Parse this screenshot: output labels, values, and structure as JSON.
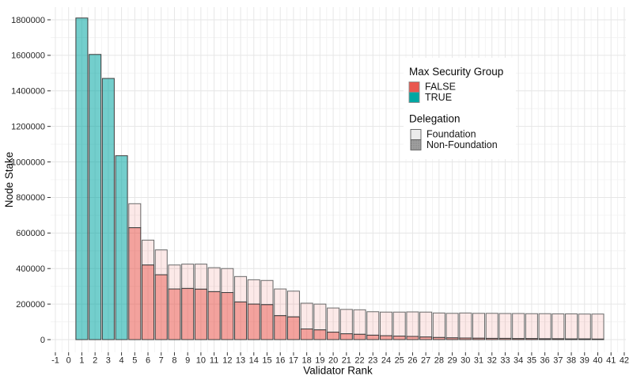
{
  "figure": {
    "xlabel": "Validator Rank",
    "ylabel": "Node Stake"
  },
  "legend": {
    "group_title": "Max Security Group",
    "group_items": [
      {
        "label": "FALSE",
        "color": "#E9564E"
      },
      {
        "label": "TRUE",
        "color": "#00A7A3"
      }
    ],
    "delegation_title": "Delegation",
    "delegation_items": [
      {
        "label": "Foundation",
        "color": "#EBEBEB"
      },
      {
        "label": "Non-Foundation",
        "color": "#9E9E9E"
      }
    ]
  },
  "colors": {
    "bar_red_rgb": "233,85,77",
    "bar_teal_rgb": "0,166,162",
    "alpha_non_foundation": 0.55,
    "alpha_foundation": 0.13,
    "grid_major": "#E6E6E6",
    "grid_minor": "#F4F4F4",
    "tick_text": "#262626",
    "title_text": "#0A0A0A",
    "bar_stroke_solid": "#3D3D3D",
    "bar_stroke_light": "#6A6A6A"
  },
  "chart_data": {
    "type": "bar",
    "stacked": true,
    "title": "",
    "xlabel": "Validator Rank",
    "ylabel": "Node Stake",
    "fill_legend": "Max Security Group",
    "alpha_legend": "Delegation",
    "x_range": [
      -1,
      42
    ],
    "ylim": [
      0,
      1871000
    ],
    "grid": true,
    "legend_position": "inside-top-right",
    "x_ticks": [
      -1,
      0,
      1,
      2,
      3,
      4,
      5,
      6,
      7,
      8,
      9,
      10,
      11,
      12,
      13,
      14,
      15,
      16,
      17,
      18,
      19,
      20,
      21,
      22,
      23,
      24,
      25,
      26,
      27,
      28,
      29,
      30,
      31,
      32,
      33,
      34,
      35,
      36,
      37,
      38,
      39,
      40,
      41,
      42
    ],
    "y_ticks": [
      0,
      200000,
      400000,
      600000,
      800000,
      1000000,
      1200000,
      1400000,
      1600000,
      1800000
    ],
    "bars": [
      {
        "rank": 1,
        "max_security_group": "TRUE",
        "non_foundation": 1810000,
        "foundation": 0
      },
      {
        "rank": 2,
        "max_security_group": "TRUE",
        "non_foundation": 1605000,
        "foundation": 0
      },
      {
        "rank": 3,
        "max_security_group": "TRUE",
        "non_foundation": 1470000,
        "foundation": 0
      },
      {
        "rank": 4,
        "max_security_group": "TRUE",
        "non_foundation": 1035000,
        "foundation": 0
      },
      {
        "rank": 5,
        "max_security_group": "FALSE",
        "non_foundation": 630000,
        "foundation": 135000
      },
      {
        "rank": 6,
        "max_security_group": "FALSE",
        "non_foundation": 420000,
        "foundation": 140000
      },
      {
        "rank": 7,
        "max_security_group": "FALSE",
        "non_foundation": 365000,
        "foundation": 140000
      },
      {
        "rank": 8,
        "max_security_group": "FALSE",
        "non_foundation": 285000,
        "foundation": 135000
      },
      {
        "rank": 9,
        "max_security_group": "FALSE",
        "non_foundation": 288000,
        "foundation": 137000
      },
      {
        "rank": 10,
        "max_security_group": "FALSE",
        "non_foundation": 284000,
        "foundation": 141000
      },
      {
        "rank": 11,
        "max_security_group": "FALSE",
        "non_foundation": 270000,
        "foundation": 135000
      },
      {
        "rank": 12,
        "max_security_group": "FALSE",
        "non_foundation": 265000,
        "foundation": 135000
      },
      {
        "rank": 13,
        "max_security_group": "FALSE",
        "non_foundation": 212000,
        "foundation": 143000
      },
      {
        "rank": 14,
        "max_security_group": "FALSE",
        "non_foundation": 200000,
        "foundation": 137000
      },
      {
        "rank": 15,
        "max_security_group": "FALSE",
        "non_foundation": 197000,
        "foundation": 136000
      },
      {
        "rank": 16,
        "max_security_group": "FALSE",
        "non_foundation": 135000,
        "foundation": 150000
      },
      {
        "rank": 17,
        "max_security_group": "FALSE",
        "non_foundation": 128000,
        "foundation": 145000
      },
      {
        "rank": 18,
        "max_security_group": "FALSE",
        "non_foundation": 60000,
        "foundation": 145000
      },
      {
        "rank": 19,
        "max_security_group": "FALSE",
        "non_foundation": 55000,
        "foundation": 145000
      },
      {
        "rank": 20,
        "max_security_group": "FALSE",
        "non_foundation": 42000,
        "foundation": 136000
      },
      {
        "rank": 21,
        "max_security_group": "FALSE",
        "non_foundation": 33000,
        "foundation": 137000
      },
      {
        "rank": 22,
        "max_security_group": "FALSE",
        "non_foundation": 30000,
        "foundation": 138000
      },
      {
        "rank": 23,
        "max_security_group": "FALSE",
        "non_foundation": 25000,
        "foundation": 132000
      },
      {
        "rank": 24,
        "max_security_group": "FALSE",
        "non_foundation": 22000,
        "foundation": 133000
      },
      {
        "rank": 25,
        "max_security_group": "FALSE",
        "non_foundation": 20000,
        "foundation": 135000
      },
      {
        "rank": 26,
        "max_security_group": "FALSE",
        "non_foundation": 18000,
        "foundation": 138000
      },
      {
        "rank": 27,
        "max_security_group": "FALSE",
        "non_foundation": 15000,
        "foundation": 140000
      },
      {
        "rank": 28,
        "max_security_group": "FALSE",
        "non_foundation": 12000,
        "foundation": 138000
      },
      {
        "rank": 29,
        "max_security_group": "FALSE",
        "non_foundation": 10000,
        "foundation": 138000
      },
      {
        "rank": 30,
        "max_security_group": "FALSE",
        "non_foundation": 9000,
        "foundation": 141000
      },
      {
        "rank": 31,
        "max_security_group": "FALSE",
        "non_foundation": 8000,
        "foundation": 140000
      },
      {
        "rank": 32,
        "max_security_group": "FALSE",
        "non_foundation": 7000,
        "foundation": 141000
      },
      {
        "rank": 33,
        "max_security_group": "FALSE",
        "non_foundation": 7000,
        "foundation": 140000
      },
      {
        "rank": 34,
        "max_security_group": "FALSE",
        "non_foundation": 6000,
        "foundation": 141000
      },
      {
        "rank": 35,
        "max_security_group": "FALSE",
        "non_foundation": 6000,
        "foundation": 140000
      },
      {
        "rank": 36,
        "max_security_group": "FALSE",
        "non_foundation": 5000,
        "foundation": 141000
      },
      {
        "rank": 37,
        "max_security_group": "FALSE",
        "non_foundation": 5000,
        "foundation": 140000
      },
      {
        "rank": 38,
        "max_security_group": "FALSE",
        "non_foundation": 4000,
        "foundation": 141000
      },
      {
        "rank": 39,
        "max_security_group": "FALSE",
        "non_foundation": 4000,
        "foundation": 140000
      },
      {
        "rank": 40,
        "max_security_group": "FALSE",
        "non_foundation": 3000,
        "foundation": 141000
      }
    ]
  }
}
